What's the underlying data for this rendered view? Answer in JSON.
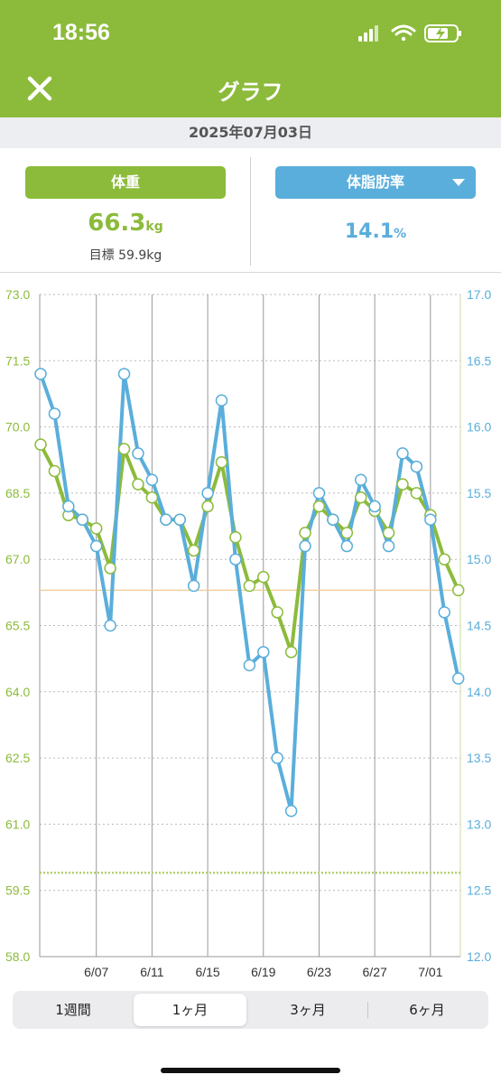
{
  "status": {
    "time": "18:56"
  },
  "nav": {
    "title": "グラフ"
  },
  "date": "2025年07月03日",
  "weight": {
    "label": "体重",
    "value": "66.3",
    "unit": "kg",
    "goal": "目標 59.9kg"
  },
  "body_fat": {
    "label": "体脂肪率",
    "value": "14.1",
    "unit": "%"
  },
  "segments": {
    "week": "1週間",
    "month": "1ヶ月",
    "three_months": "3ヶ月",
    "six_months": "6ヶ月",
    "selected": "1ヶ月"
  },
  "colors": {
    "weight": "#8cbb3b",
    "body_fat": "#5aaedb",
    "header": "#8cbb3b"
  },
  "chart_data": {
    "type": "line",
    "x": [
      "6/03",
      "6/04",
      "6/05",
      "6/06",
      "6/07",
      "6/08",
      "6/09",
      "6/10",
      "6/11",
      "6/12",
      "6/13",
      "6/14",
      "6/15",
      "6/16",
      "6/17",
      "6/18",
      "6/19",
      "6/20",
      "6/21",
      "6/22",
      "6/23",
      "6/24",
      "6/25",
      "6/26",
      "6/27",
      "6/28",
      "6/29",
      "6/30",
      "7/01",
      "7/02",
      "7/03"
    ],
    "x_ticks": [
      "6/07",
      "6/11",
      "6/15",
      "6/19",
      "6/23",
      "6/27",
      "7/01"
    ],
    "y_left_ticks": [
      "73.0",
      "71.5",
      "70.0",
      "68.5",
      "67.0",
      "65.5",
      "64.0",
      "62.5",
      "61.0",
      "59.5",
      "58.0"
    ],
    "y_right_ticks": [
      "17.0",
      "16.5",
      "16.0",
      "15.5",
      "15.0",
      "14.5",
      "14.0",
      "13.5",
      "13.0",
      "12.5",
      "12.0"
    ],
    "ylim_left": [
      58.0,
      73.0
    ],
    "ylim_right": [
      12.0,
      17.0
    ],
    "goal_weight": 59.9,
    "series": [
      {
        "name": "体重",
        "axis": "left",
        "values": [
          69.6,
          69.0,
          68.0,
          67.9,
          67.7,
          66.8,
          69.5,
          68.7,
          68.4,
          67.9,
          67.9,
          67.2,
          68.2,
          69.2,
          67.5,
          66.4,
          66.6,
          65.8,
          64.9,
          67.6,
          68.2,
          67.9,
          67.6,
          68.4,
          68.1,
          67.6,
          68.7,
          68.5,
          68.0,
          67.0,
          66.3
        ]
      },
      {
        "name": "体脂肪率",
        "axis": "right",
        "values": [
          16.4,
          16.1,
          15.4,
          15.3,
          15.1,
          14.5,
          16.4,
          15.8,
          15.6,
          15.3,
          15.3,
          14.8,
          15.5,
          16.2,
          15.0,
          14.2,
          14.3,
          13.5,
          13.1,
          15.1,
          15.5,
          15.3,
          15.1,
          15.6,
          15.4,
          15.1,
          15.8,
          15.7,
          15.3,
          14.6,
          14.1
        ]
      }
    ]
  }
}
